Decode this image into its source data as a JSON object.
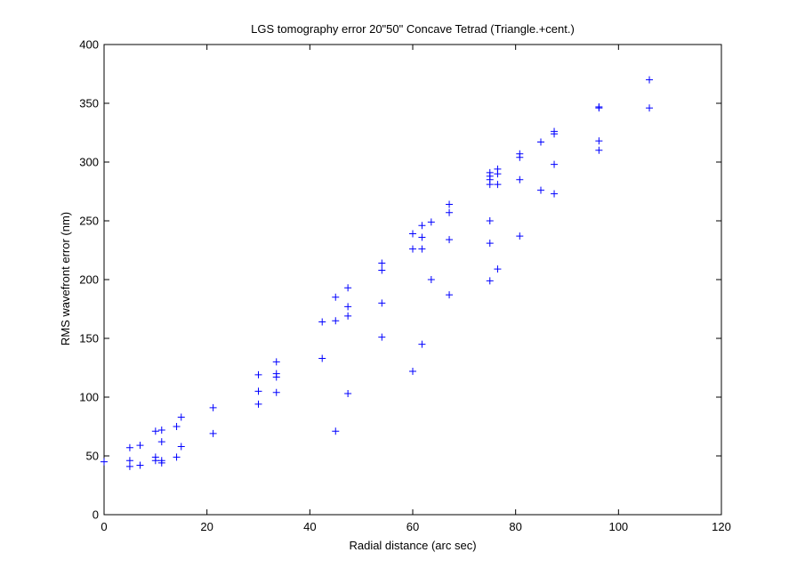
{
  "chart_data": {
    "type": "scatter",
    "title": "LGS tomography error 20\"50\" Concave Tetrad (Triangle.+cent.)",
    "xlabel": "Radial distance (arc sec)",
    "ylabel": "RMS wavefront error (nm)",
    "xlim": [
      0,
      120
    ],
    "ylim": [
      0,
      400
    ],
    "xticks": [
      "0",
      "20",
      "40",
      "60",
      "80",
      "100",
      "120"
    ],
    "yticks": [
      "0",
      "50",
      "100",
      "150",
      "200",
      "250",
      "300",
      "350",
      "400"
    ],
    "grid": false,
    "legend": "none",
    "marker": "+",
    "marker_color": "#0000ff",
    "points": [
      [
        0,
        45
      ],
      [
        5,
        57
      ],
      [
        5,
        46
      ],
      [
        5,
        41
      ],
      [
        7,
        59
      ],
      [
        7,
        42
      ],
      [
        10,
        71
      ],
      [
        10,
        49
      ],
      [
        10,
        46
      ],
      [
        11.2,
        72
      ],
      [
        11.2,
        62
      ],
      [
        11.2,
        46
      ],
      [
        11.2,
        44
      ],
      [
        14.1,
        75
      ],
      [
        14.1,
        49
      ],
      [
        15,
        83
      ],
      [
        15,
        58
      ],
      [
        21.2,
        91
      ],
      [
        21.2,
        69
      ],
      [
        30,
        119
      ],
      [
        30,
        105
      ],
      [
        30,
        94
      ],
      [
        33.5,
        130
      ],
      [
        33.5,
        120
      ],
      [
        33.5,
        117
      ],
      [
        33.5,
        104
      ],
      [
        42.4,
        164
      ],
      [
        42.4,
        133
      ],
      [
        45,
        185
      ],
      [
        45,
        165
      ],
      [
        45,
        71
      ],
      [
        47.4,
        193
      ],
      [
        47.4,
        177
      ],
      [
        47.4,
        169
      ],
      [
        47.4,
        103
      ],
      [
        54,
        214
      ],
      [
        54,
        208
      ],
      [
        54,
        180
      ],
      [
        54,
        151
      ],
      [
        60,
        239
      ],
      [
        60,
        226
      ],
      [
        60,
        122
      ],
      [
        61.8,
        246
      ],
      [
        61.8,
        236
      ],
      [
        61.8,
        226
      ],
      [
        61.8,
        145
      ],
      [
        63.6,
        249
      ],
      [
        63.6,
        200
      ],
      [
        67.1,
        264
      ],
      [
        67.1,
        257
      ],
      [
        67.1,
        234
      ],
      [
        67.1,
        187
      ],
      [
        75,
        291
      ],
      [
        75,
        288
      ],
      [
        75,
        285
      ],
      [
        75,
        281
      ],
      [
        75,
        250
      ],
      [
        75,
        231
      ],
      [
        75,
        199
      ],
      [
        76.5,
        294
      ],
      [
        76.5,
        290
      ],
      [
        76.5,
        281
      ],
      [
        76.5,
        209
      ],
      [
        80.8,
        307
      ],
      [
        80.8,
        304
      ],
      [
        80.8,
        285
      ],
      [
        80.8,
        237
      ],
      [
        84.9,
        317
      ],
      [
        84.9,
        276
      ],
      [
        87.5,
        326
      ],
      [
        87.5,
        324
      ],
      [
        87.5,
        298
      ],
      [
        87.5,
        273
      ],
      [
        96.2,
        347
      ],
      [
        96.2,
        346
      ],
      [
        96.2,
        318
      ],
      [
        96.2,
        310
      ],
      [
        106,
        370
      ],
      [
        106,
        346
      ]
    ]
  }
}
